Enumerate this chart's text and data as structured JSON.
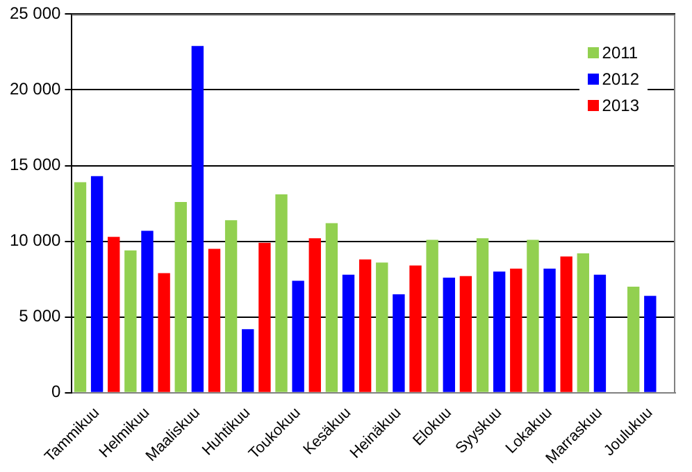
{
  "chart_data": {
    "type": "bar",
    "categories": [
      "Tammikuu",
      "Helmikuu",
      "Maaliskuu",
      "Huhtikuu",
      "Toukokuu",
      "Kesäkuu",
      "Heinäkuu",
      "Elokuu",
      "Syyskuu",
      "Lokakuu",
      "Marraskuu",
      "Joulukuu"
    ],
    "series": [
      {
        "name": "2011",
        "color": "#92d050",
        "values": [
          13900,
          9400,
          12600,
          11400,
          13100,
          11200,
          8600,
          10100,
          10200,
          10100,
          9200,
          7000
        ]
      },
      {
        "name": "2012",
        "color": "#0000ff",
        "values": [
          14300,
          10700,
          22900,
          4200,
          7400,
          7800,
          6500,
          7600,
          8000,
          8200,
          7800,
          6400
        ]
      },
      {
        "name": "2013",
        "color": "#ff0000",
        "values": [
          10300,
          7900,
          9500,
          9900,
          10200,
          8800,
          8400,
          7700,
          8200,
          9000,
          null,
          null
        ]
      }
    ],
    "ylim": [
      0,
      25000
    ],
    "yticks": [
      {
        "value": 0,
        "label": "0"
      },
      {
        "value": 5000,
        "label": "5 000"
      },
      {
        "value": 10000,
        "label": "10 000"
      },
      {
        "value": 15000,
        "label": "15 000"
      },
      {
        "value": 20000,
        "label": "20 000"
      },
      {
        "value": 25000,
        "label": "25 000"
      }
    ],
    "grid": "y",
    "legend": "top right"
  }
}
